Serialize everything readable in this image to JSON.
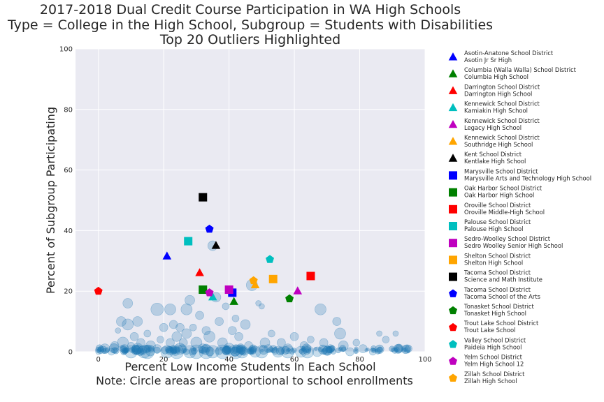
{
  "chart_data": {
    "type": "scatter",
    "title": [
      "2017-2018 Dual Credit Course Participation in WA High Schools",
      "Type = College in the High School, Subgroup = Students with Disabilities",
      "Top 20 Outliers Highlighted"
    ],
    "xlabel": [
      "Percent Low Income Students In Each School",
      "Note: Circle areas are proportional to school enrollments"
    ],
    "ylabel": "Percent of Subgroup Participating",
    "xlim": [
      -7,
      100
    ],
    "ylim": [
      0,
      100
    ],
    "xticks": [
      0,
      20,
      40,
      60,
      80,
      100
    ],
    "yticks": [
      0,
      20,
      40,
      60,
      80,
      100
    ],
    "grid": true,
    "legend_placement": "outside-right",
    "background_points": [
      {
        "x": 0,
        "y": 0,
        "s": 4
      },
      {
        "x": 2,
        "y": 1,
        "s": 7
      },
      {
        "x": 4,
        "y": 0,
        "s": 5
      },
      {
        "x": 5,
        "y": 2,
        "s": 6
      },
      {
        "x": 6,
        "y": 7,
        "s": 4
      },
      {
        "x": 7,
        "y": 10,
        "s": 7
      },
      {
        "x": 7.5,
        "y": 3,
        "s": 8
      },
      {
        "x": 8,
        "y": 1,
        "s": 6
      },
      {
        "x": 9,
        "y": 16,
        "s": 7
      },
      {
        "x": 9,
        "y": 9,
        "s": 8
      },
      {
        "x": 10,
        "y": 0,
        "s": 9
      },
      {
        "x": 10,
        "y": 2,
        "s": 5
      },
      {
        "x": 11,
        "y": 5,
        "s": 6
      },
      {
        "x": 12,
        "y": 10,
        "s": 7
      },
      {
        "x": 12,
        "y": 1,
        "s": 8
      },
      {
        "x": 13,
        "y": 3,
        "s": 6
      },
      {
        "x": 14,
        "y": 0,
        "s": 9
      },
      {
        "x": 15,
        "y": 6,
        "s": 5
      },
      {
        "x": 16,
        "y": 2,
        "s": 7
      },
      {
        "x": 18,
        "y": 14,
        "s": 9
      },
      {
        "x": 18,
        "y": 1,
        "s": 6
      },
      {
        "x": 19,
        "y": 4,
        "s": 5
      },
      {
        "x": 20,
        "y": 8,
        "s": 6
      },
      {
        "x": 21,
        "y": 0,
        "s": 9
      },
      {
        "x": 22,
        "y": 14,
        "s": 8
      },
      {
        "x": 22,
        "y": 3,
        "s": 6
      },
      {
        "x": 23,
        "y": 9,
        "s": 6
      },
      {
        "x": 24,
        "y": 5,
        "s": 7
      },
      {
        "x": 25,
        "y": 8,
        "s": 6
      },
      {
        "x": 25,
        "y": 1,
        "s": 8
      },
      {
        "x": 26,
        "y": 3,
        "s": 6
      },
      {
        "x": 27,
        "y": 14,
        "s": 8
      },
      {
        "x": 27,
        "y": 6,
        "s": 7
      },
      {
        "x": 28,
        "y": 17,
        "s": 7
      },
      {
        "x": 28,
        "y": 0,
        "s": 9
      },
      {
        "x": 29,
        "y": 8,
        "s": 5
      },
      {
        "x": 30,
        "y": 3,
        "s": 8
      },
      {
        "x": 31,
        "y": 12,
        "s": 6
      },
      {
        "x": 32,
        "y": 1,
        "s": 7
      },
      {
        "x": 33,
        "y": 7,
        "s": 6
      },
      {
        "x": 34,
        "y": 5,
        "s": 8
      },
      {
        "x": 35,
        "y": 35,
        "s": 7
      },
      {
        "x": 35,
        "y": 0,
        "s": 9
      },
      {
        "x": 36,
        "y": 18,
        "s": 7
      },
      {
        "x": 37,
        "y": 10,
        "s": 6
      },
      {
        "x": 38,
        "y": 3,
        "s": 7
      },
      {
        "x": 39,
        "y": 15,
        "s": 5
      },
      {
        "x": 40,
        "y": 1,
        "s": 8
      },
      {
        "x": 41,
        "y": 7,
        "s": 6
      },
      {
        "x": 42,
        "y": 11,
        "s": 5
      },
      {
        "x": 43,
        "y": 5,
        "s": 6
      },
      {
        "x": 44,
        "y": 0,
        "s": 9
      },
      {
        "x": 45,
        "y": 9,
        "s": 7
      },
      {
        "x": 46,
        "y": 2,
        "s": 6
      },
      {
        "x": 47,
        "y": 22,
        "s": 8
      },
      {
        "x": 48,
        "y": 0,
        "s": 8
      },
      {
        "x": 49,
        "y": 16,
        "s": 4
      },
      {
        "x": 50,
        "y": 15,
        "s": 4
      },
      {
        "x": 51,
        "y": 3,
        "s": 7
      },
      {
        "x": 52,
        "y": 1,
        "s": 6
      },
      {
        "x": 53,
        "y": 6,
        "s": 5
      },
      {
        "x": 55,
        "y": 0,
        "s": 8
      },
      {
        "x": 56,
        "y": 3,
        "s": 6
      },
      {
        "x": 58,
        "y": 1,
        "s": 7
      },
      {
        "x": 60,
        "y": 5,
        "s": 6
      },
      {
        "x": 62,
        "y": 0,
        "s": 8
      },
      {
        "x": 63,
        "y": 2,
        "s": 6
      },
      {
        "x": 65,
        "y": 4,
        "s": 5
      },
      {
        "x": 67,
        "y": 0,
        "s": 7
      },
      {
        "x": 68,
        "y": 14,
        "s": 8
      },
      {
        "x": 69,
        "y": 3,
        "s": 6
      },
      {
        "x": 71,
        "y": 1,
        "s": 6
      },
      {
        "x": 73,
        "y": 10,
        "s": 6
      },
      {
        "x": 74,
        "y": 6,
        "s": 8
      },
      {
        "x": 75,
        "y": 2,
        "s": 7
      },
      {
        "x": 77,
        "y": 0,
        "s": 6
      },
      {
        "x": 79,
        "y": 3,
        "s": 5
      },
      {
        "x": 81,
        "y": 1,
        "s": 6
      },
      {
        "x": 84,
        "y": 0,
        "s": 5
      },
      {
        "x": 86,
        "y": 6,
        "s": 4
      },
      {
        "x": 88,
        "y": 4,
        "s": 5
      },
      {
        "x": 91,
        "y": 6,
        "s": 4
      },
      {
        "x": 92,
        "y": 1,
        "s": 5
      },
      {
        "x": 95,
        "y": 1,
        "s": 5
      },
      {
        "x": 15,
        "y": 0,
        "s": 10
      },
      {
        "x": 24,
        "y": 0,
        "s": 10
      },
      {
        "x": 30,
        "y": 0,
        "s": 10
      },
      {
        "x": 33,
        "y": 0,
        "s": 10
      },
      {
        "x": 38,
        "y": 0,
        "s": 10
      },
      {
        "x": 42,
        "y": 0,
        "s": 10
      },
      {
        "x": 50,
        "y": 0,
        "s": 9
      },
      {
        "x": 58,
        "y": 0,
        "s": 9
      },
      {
        "x": 64,
        "y": 0,
        "s": 9
      }
    ],
    "dense_baseline": {
      "x_from": 0,
      "x_to": 95,
      "y": 0,
      "count": 160
    },
    "outliers": [
      {
        "name": "Asotin-Anatone School District",
        "school": "Asotin Jr Sr High",
        "x": 21,
        "y": 31.5,
        "marker": "triangle",
        "color": "#0000ff"
      },
      {
        "name": "Columbia (Walla Walla) School District",
        "school": "Columbia High School",
        "x": 41.5,
        "y": 16.5,
        "marker": "triangle",
        "color": "#008000"
      },
      {
        "name": "Darrington School District",
        "school": "Darrington High School",
        "x": 31,
        "y": 26,
        "marker": "triangle",
        "color": "#ff0000"
      },
      {
        "name": "Kennewick School District",
        "school": "Kamiakin High School",
        "x": 35,
        "y": 18,
        "marker": "triangle",
        "color": "#00bfbf"
      },
      {
        "name": "Kennewick School District",
        "school": "Legacy High School",
        "x": 61,
        "y": 20,
        "marker": "triangle",
        "color": "#bf00bf"
      },
      {
        "name": "Kennewick School District",
        "school": "Southridge High School",
        "x": 48,
        "y": 22,
        "marker": "triangle",
        "color": "#ffa500"
      },
      {
        "name": "Kent School District",
        "school": "Kentlake High School",
        "x": 36,
        "y": 35,
        "marker": "triangle",
        "color": "#000000"
      },
      {
        "name": "Marysville School District",
        "school": "Marysville Arts and Technology High School",
        "x": 41,
        "y": 19.5,
        "marker": "square",
        "color": "#0000ff"
      },
      {
        "name": "Oak Harbor School District",
        "school": "Oak Harbor High School",
        "x": 32,
        "y": 20.5,
        "marker": "square",
        "color": "#008000"
      },
      {
        "name": "Oroville School District",
        "school": "Oroville Middle-High School",
        "x": 65,
        "y": 25,
        "marker": "square",
        "color": "#ff0000"
      },
      {
        "name": "Palouse School District",
        "school": "Palouse High School",
        "x": 27.5,
        "y": 36.5,
        "marker": "square",
        "color": "#00bfbf"
      },
      {
        "name": "Sedro-Woolley School District",
        "school": "Sedro Woolley Senior High School",
        "x": 40,
        "y": 20.5,
        "marker": "square",
        "color": "#bf00bf"
      },
      {
        "name": "Shelton School District",
        "school": "Shelton High School",
        "x": 53.5,
        "y": 24,
        "marker": "square",
        "color": "#ffa500"
      },
      {
        "name": "Tacoma School District",
        "school": "Science and Math Institute",
        "x": 32,
        "y": 51,
        "marker": "square",
        "color": "#000000"
      },
      {
        "name": "Tacoma School District",
        "school": "Tacoma School of the Arts",
        "x": 34,
        "y": 40.5,
        "marker": "pentagon",
        "color": "#0000ff"
      },
      {
        "name": "Tonasket School District",
        "school": "Tonasket High School",
        "x": 58.5,
        "y": 17.5,
        "marker": "pentagon",
        "color": "#008000"
      },
      {
        "name": "Trout Lake School District",
        "school": "Trout Lake School",
        "x": 0,
        "y": 20,
        "marker": "pentagon",
        "color": "#ff0000"
      },
      {
        "name": "Valley School District",
        "school": "Paideia High School",
        "x": 52.5,
        "y": 30.5,
        "marker": "pentagon",
        "color": "#00bfbf"
      },
      {
        "name": "Yelm School District",
        "school": "Yelm High School 12",
        "x": 34,
        "y": 19.5,
        "marker": "pentagon",
        "color": "#bf00bf"
      },
      {
        "name": "Zillah School District",
        "school": "Zillah High School",
        "x": 47.5,
        "y": 23.5,
        "marker": "pentagon",
        "color": "#ffa500"
      }
    ],
    "colors": {
      "background": "#eaeaf2",
      "grid": "#ffffff",
      "bubble": "#1f77b4"
    }
  }
}
